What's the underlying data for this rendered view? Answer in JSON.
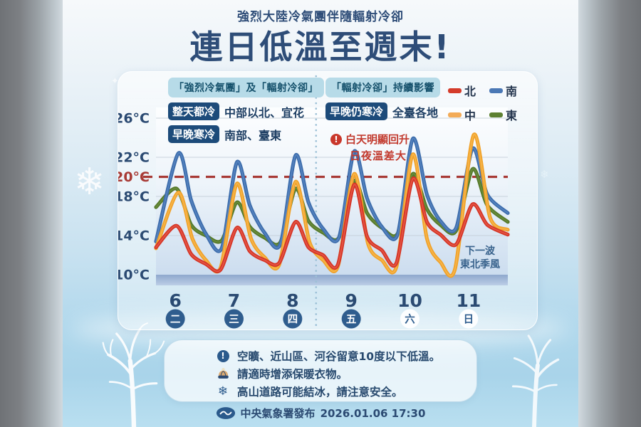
{
  "header": {
    "subtitle": "強烈大陸冷氣團伴隨輻射冷卻",
    "title": "連日低溫至週末!"
  },
  "panels": {
    "left": {
      "header": "「強烈冷氣團」及「輻射冷卻」",
      "rows": [
        {
          "badge": "整天都冷",
          "text": "中部以北、宜花"
        },
        {
          "badge": "早晚寒冷",
          "text": "南部、臺東"
        }
      ]
    },
    "right": {
      "header": "「輻射冷卻」持續影響",
      "rows": [
        {
          "badge": "早晚仍寒冷",
          "text": "全臺各地"
        }
      ]
    }
  },
  "warning_note": {
    "line1": "白天明顯回升",
    "line2": "日夜溫差大"
  },
  "next_wave_note": {
    "line1": "下一波",
    "line2": "東北季風"
  },
  "chart_data": {
    "type": "line",
    "title": "連日低溫至週末!",
    "ylabel": "°C",
    "ylim": [
      10,
      26
    ],
    "x_unit": "day",
    "grid": true,
    "legend_position": "top-right",
    "yticks": [
      {
        "label": "26°C",
        "value": 26,
        "highlight": false
      },
      {
        "label": "22°C",
        "value": 22,
        "highlight": false
      },
      {
        "label": "20°C",
        "value": 20,
        "highlight": true
      },
      {
        "label": "18°C",
        "value": 18,
        "highlight": false
      },
      {
        "label": "14°C",
        "value": 14,
        "highlight": false
      },
      {
        "label": "10°C",
        "value": 10,
        "highlight": false
      }
    ],
    "gridline_values": [
      26,
      22,
      18,
      14
    ],
    "reference_line": {
      "value": 20,
      "style": "dashed",
      "color": "#a83a35"
    },
    "divider_day": 2.73,
    "days": [
      {
        "date": "6",
        "weekday": "二",
        "weekend": false
      },
      {
        "date": "7",
        "weekday": "三",
        "weekend": false
      },
      {
        "date": "8",
        "weekday": "四",
        "weekend": false
      },
      {
        "date": "9",
        "weekday": "五",
        "weekend": false
      },
      {
        "date": "10",
        "weekday": "六",
        "weekend": true
      },
      {
        "date": "11",
        "weekday": "日",
        "weekend": true
      }
    ],
    "series": [
      {
        "name": "東",
        "region": "east",
        "color": "#56792b",
        "core": "#6f9440",
        "points": [
          [
            0,
            16.9
          ],
          [
            0.35,
            18.8
          ],
          [
            0.6,
            15.1
          ],
          [
            0.85,
            14.0
          ],
          [
            1.12,
            13.5
          ],
          [
            1.38,
            17.4
          ],
          [
            1.6,
            14.9
          ],
          [
            1.85,
            13.8
          ],
          [
            2.12,
            13.3
          ],
          [
            2.38,
            18.8
          ],
          [
            2.6,
            15.5
          ],
          [
            2.85,
            14.3
          ],
          [
            3.12,
            13.8
          ],
          [
            3.38,
            19.6
          ],
          [
            3.6,
            16.3
          ],
          [
            3.85,
            14.8
          ],
          [
            4.12,
            14.2
          ],
          [
            4.38,
            20.3
          ],
          [
            4.62,
            16.7
          ],
          [
            4.85,
            15.1
          ],
          [
            5.12,
            14.5
          ],
          [
            5.4,
            20.8
          ],
          [
            5.65,
            17.1
          ],
          [
            6,
            15.4
          ]
        ]
      },
      {
        "name": "南",
        "region": "south",
        "color": "#3d6dac",
        "core": "#5d8ac5",
        "points": [
          [
            0,
            13.4
          ],
          [
            0.38,
            22.4
          ],
          [
            0.6,
            17.6
          ],
          [
            0.85,
            14.2
          ],
          [
            1.12,
            12.7
          ],
          [
            1.38,
            21.5
          ],
          [
            1.6,
            17.1
          ],
          [
            1.85,
            14.3
          ],
          [
            2.12,
            13.1
          ],
          [
            2.38,
            22.2
          ],
          [
            2.6,
            17.4
          ],
          [
            2.85,
            14.7
          ],
          [
            3.12,
            13.8
          ],
          [
            3.38,
            22.6
          ],
          [
            3.6,
            17.8
          ],
          [
            3.85,
            14.9
          ],
          [
            4.12,
            14.1
          ],
          [
            4.38,
            23.9
          ],
          [
            4.62,
            18.2
          ],
          [
            4.85,
            15.5
          ],
          [
            5.12,
            14.8
          ],
          [
            5.4,
            22.9
          ],
          [
            5.65,
            18.2
          ],
          [
            6,
            16.3
          ]
        ]
      },
      {
        "name": "中",
        "region": "central",
        "color": "#f1a22a",
        "core": "#f7bc55",
        "points": [
          [
            0,
            12.7
          ],
          [
            0.38,
            18.4
          ],
          [
            0.62,
            13.7
          ],
          [
            0.85,
            11.5
          ],
          [
            1.1,
            10.7
          ],
          [
            1.38,
            19.3
          ],
          [
            1.62,
            13.7
          ],
          [
            1.85,
            11.8
          ],
          [
            2.1,
            11.0
          ],
          [
            2.38,
            19.5
          ],
          [
            2.62,
            13.3
          ],
          [
            2.85,
            11.5
          ],
          [
            3.1,
            10.8
          ],
          [
            3.38,
            20.3
          ],
          [
            3.62,
            13.1
          ],
          [
            3.85,
            11.5
          ],
          [
            4.1,
            10.8
          ],
          [
            4.38,
            22.3
          ],
          [
            4.62,
            13.7
          ],
          [
            4.85,
            11.3
          ],
          [
            5.1,
            10.6
          ],
          [
            5.42,
            24.3
          ],
          [
            5.7,
            15.8
          ],
          [
            6,
            14.6
          ]
        ]
      },
      {
        "name": "北",
        "region": "north",
        "color": "#d53527",
        "core": "#e8604f",
        "points": [
          [
            0,
            12.8
          ],
          [
            0.35,
            15.0
          ],
          [
            0.6,
            12.1
          ],
          [
            0.85,
            11.1
          ],
          [
            1.1,
            10.5
          ],
          [
            1.38,
            14.8
          ],
          [
            1.6,
            12.4
          ],
          [
            1.85,
            11.5
          ],
          [
            2.1,
            11.2
          ],
          [
            2.38,
            15.4
          ],
          [
            2.6,
            12.8
          ],
          [
            2.85,
            12.0
          ],
          [
            3.1,
            11.0
          ],
          [
            3.38,
            19.2
          ],
          [
            3.6,
            13.9
          ],
          [
            3.85,
            12.5
          ],
          [
            4.1,
            11.2
          ],
          [
            4.38,
            19.8
          ],
          [
            4.62,
            15.4
          ],
          [
            4.85,
            14.1
          ],
          [
            5.12,
            13.1
          ],
          [
            5.4,
            17.2
          ],
          [
            5.65,
            15.1
          ],
          [
            6,
            14.1
          ]
        ]
      }
    ],
    "legend": [
      {
        "label": "北",
        "color": "#d43b2a"
      },
      {
        "label": "南",
        "color": "#4a78b5"
      },
      {
        "label": "中",
        "color": "#f3ab57"
      },
      {
        "label": "東",
        "color": "#5d8031"
      }
    ]
  },
  "info_box": {
    "items": [
      {
        "icon": "alert-circle-icon",
        "text": "空曠、近山區、河谷留意10度以下低溫。"
      },
      {
        "icon": "beanie-icon",
        "text": "請適時增添保暖衣物。"
      },
      {
        "icon": "snowflake-icon",
        "text": "高山道路可能結冰，請注意安全。"
      }
    ]
  },
  "footer": {
    "agency": "中央氣象署發布",
    "datetime": "2026.01.06 17:30"
  },
  "colors": {
    "title_navy": "#2e4d78",
    "badge_navy": "#1d4b7a",
    "pill_blue": "#b7dbe8",
    "warning_red": "#c23a2e",
    "reference_red": "#a83a35",
    "weekday_circle": "#2f5d8e"
  }
}
